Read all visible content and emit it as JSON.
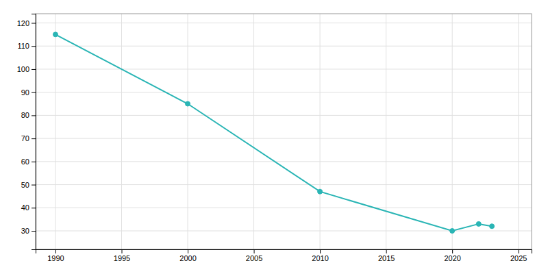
{
  "chart_data": {
    "type": "line",
    "x": [
      1990,
      2000,
      2010,
      2020,
      2022,
      2023
    ],
    "values": [
      115,
      85,
      47,
      30,
      33,
      32
    ],
    "color": "#2ab5b5",
    "marker": "circle",
    "xlim": [
      1988.5,
      2026
    ],
    "ylim": [
      22,
      124
    ],
    "xticks": [
      1990,
      1995,
      2000,
      2005,
      2010,
      2015,
      2020,
      2025
    ],
    "yticks": [
      30,
      40,
      50,
      60,
      70,
      80,
      90,
      100,
      110,
      120
    ],
    "grid": true
  }
}
